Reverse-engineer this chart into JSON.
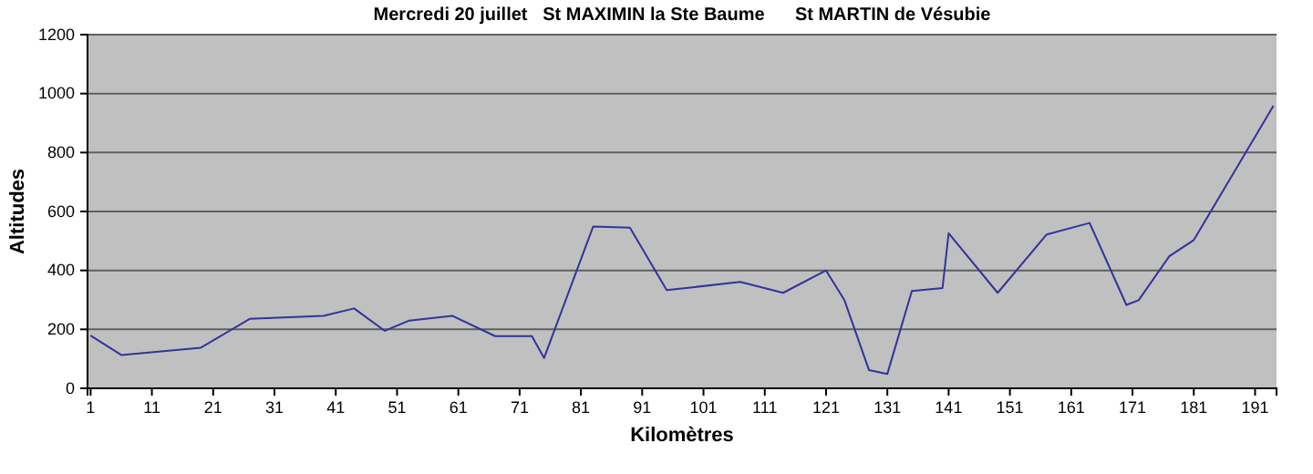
{
  "chart_data": {
    "type": "line",
    "title": "Mercredi 20 juillet   St MAXIMIN la Ste Baume      St MARTIN de Vésubie",
    "xlabel": "Kilomètres",
    "ylabel": "Altitudes",
    "x": [
      1,
      6,
      19,
      27,
      39,
      44,
      49,
      53,
      60,
      67,
      73,
      75,
      83,
      89,
      95,
      107,
      114,
      121,
      124,
      128,
      131,
      135,
      140,
      141,
      149,
      157,
      164,
      170,
      172,
      177,
      181,
      194
    ],
    "series": [
      {
        "color": "#333399",
        "values": [
          179,
          113,
          138,
          236,
          246,
          271,
          195,
          230,
          246,
          177,
          177,
          103,
          549,
          545,
          333,
          361,
          324,
          400,
          299,
          62,
          49,
          330,
          340,
          526,
          324,
          522,
          561,
          283,
          299,
          448,
          503,
          959
        ]
      }
    ],
    "xlim": [
      0.5,
      194.5
    ],
    "xticks": [
      1,
      11,
      21,
      31,
      41,
      51,
      61,
      71,
      81,
      91,
      101,
      111,
      121,
      131,
      141,
      151,
      161,
      171,
      181,
      191
    ],
    "ylim": [
      0,
      1200
    ],
    "yticks": [
      0,
      200,
      400,
      600,
      800,
      1000,
      1200
    ],
    "grid": "y",
    "marker": "none",
    "line_style": "solid"
  }
}
